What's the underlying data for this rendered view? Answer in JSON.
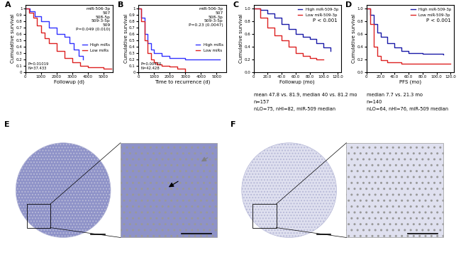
{
  "chart_data": [
    {
      "panel": "A",
      "type": "step",
      "xlabel": "Followup (d)",
      "ylabel": "Cumulative survival",
      "xlim": [
        0,
        5600
      ],
      "xticks": [
        0,
        1000,
        2000,
        3000,
        4000,
        5000
      ],
      "ylim": [
        0,
        1.05
      ],
      "yticks": [
        0,
        0.1,
        0.2,
        0.3,
        0.4,
        0.5,
        0.6,
        0.7,
        0.8,
        0.9,
        1
      ],
      "mirs": [
        "miR-506-3p",
        "507",
        "508-5p",
        "509-3-5p",
        "509"
      ],
      "p_value": "P=0.049 (0.010)",
      "stats": [
        "P=0.01019",
        "N=37.433"
      ],
      "legend": "center right",
      "series": [
        {
          "name": "High miRs",
          "color": "#3333ff",
          "x": [
            0,
            300,
            600,
            1000,
            1500,
            2000,
            2500,
            2800,
            3100,
            3400,
            3700
          ],
          "values": [
            1,
            0.95,
            0.88,
            0.8,
            0.7,
            0.6,
            0.55,
            0.45,
            0.35,
            0.25,
            0.2
          ]
        },
        {
          "name": "Low miRs",
          "color": "#dd2222",
          "x": [
            0,
            250,
            500,
            750,
            1000,
            1250,
            1500,
            2000,
            2500,
            3000,
            3500,
            4000,
            5000,
            5500
          ],
          "values": [
            1,
            0.93,
            0.85,
            0.73,
            0.62,
            0.53,
            0.45,
            0.33,
            0.22,
            0.15,
            0.1,
            0.07,
            0.05,
            0.05
          ]
        }
      ]
    },
    {
      "panel": "B",
      "type": "step",
      "xlabel": "Time to recurrence (d)",
      "ylabel": "Cumulative survival",
      "xlim": [
        0,
        5600
      ],
      "xticks": [
        0,
        1000,
        2000,
        3000,
        4000,
        5000
      ],
      "ylim": [
        0,
        1.05
      ],
      "yticks": [
        0,
        0.1,
        0.2,
        0.3,
        0.4,
        0.5,
        0.6,
        0.7,
        0.8,
        0.9,
        1
      ],
      "mirs": [
        "miR-506-3p",
        "507",
        "508-3p",
        "509-3-5p"
      ],
      "p_value": "P=0.23 (0.0047)",
      "stats": [
        "P=0.00470",
        "N=42.428"
      ],
      "legend": "center right",
      "series": [
        {
          "name": "High miRs",
          "color": "#3333ff",
          "x": [
            0,
            200,
            400,
            600,
            800,
            1000,
            1500,
            2000,
            3000,
            5200
          ],
          "values": [
            1,
            0.85,
            0.6,
            0.45,
            0.35,
            0.3,
            0.25,
            0.22,
            0.2,
            0.2
          ]
        },
        {
          "name": "Low miRs",
          "color": "#dd2222",
          "x": [
            0,
            200,
            400,
            600,
            800,
            1000,
            1200,
            1500,
            2000,
            2500,
            3000
          ],
          "values": [
            1,
            0.8,
            0.5,
            0.3,
            0.2,
            0.15,
            0.12,
            0.1,
            0.08,
            0.05,
            0
          ]
        }
      ]
    },
    {
      "panel": "C",
      "type": "step",
      "xlabel": "Followup (mo)",
      "ylabel": "Cumulative survival",
      "xlim": [
        0,
        125
      ],
      "xticks": [
        0,
        {
          "value": 20,
          "label": "20.0"
        },
        {
          "value": 40,
          "label": "40.0"
        },
        {
          "value": 60,
          "label": "60.0"
        },
        {
          "value": 80,
          "label": "80.0"
        },
        {
          "value": 100,
          "label": "100.0"
        },
        {
          "value": 120,
          "label": "120.0"
        }
      ],
      "ylim": [
        0,
        1.05
      ],
      "yticks": [
        {
          "value": 0,
          "label": "0.0"
        },
        0.2,
        0.4,
        0.6,
        0.8,
        {
          "value": 1,
          "label": "1.0"
        }
      ],
      "p_value": "P < 0.001",
      "notes": [
        "mean 47.8 vs. 81.9, median 40 vs. 81.2 mo",
        "n=157",
        "nLO=75, nHI=82, miR-509 median"
      ],
      "legend": "upper right",
      "series": [
        {
          "name": "High miR-509-3p",
          "color": "#1a1aa8",
          "x": [
            0,
            10,
            20,
            30,
            40,
            50,
            60,
            70,
            80,
            90,
            100,
            110
          ],
          "values": [
            1,
            0.97,
            0.92,
            0.85,
            0.75,
            0.67,
            0.6,
            0.55,
            0.52,
            0.45,
            0.38,
            0.33
          ]
        },
        {
          "name": "Low miR-509-3p",
          "color": "#dd2222",
          "x": [
            0,
            10,
            20,
            30,
            40,
            50,
            60,
            70,
            80,
            90,
            100
          ],
          "values": [
            1,
            0.85,
            0.7,
            0.58,
            0.5,
            0.4,
            0.3,
            0.25,
            0.22,
            0.2,
            0.2
          ]
        }
      ]
    },
    {
      "panel": "D",
      "type": "step",
      "xlabel": "PFS (mo)",
      "ylabel": "Cumulative survival",
      "xlim": [
        0,
        125
      ],
      "xticks": [
        0,
        {
          "value": 20,
          "label": "20.0"
        },
        {
          "value": 40,
          "label": "40.0"
        },
        {
          "value": 60,
          "label": "60.0"
        },
        {
          "value": 80,
          "label": "80.0"
        },
        {
          "value": 100,
          "label": "100.0"
        },
        {
          "value": 120,
          "label": "120.0"
        }
      ],
      "ylim": [
        0,
        1.05
      ],
      "yticks": [
        {
          "value": 0,
          "label": "0.0"
        },
        0.2,
        0.4,
        0.6,
        0.8,
        {
          "value": 1,
          "label": "1.0"
        }
      ],
      "p_value": "P < 0.001",
      "notes": [
        "median 7.7 vs. 21.3 mo",
        "n=140",
        "nLO=64, nHI=76, miR-509 median"
      ],
      "legend": "upper right",
      "series": [
        {
          "name": "High miR-509-3p",
          "color": "#1a1aa8",
          "x": [
            0,
            5,
            10,
            15,
            20,
            30,
            40,
            50,
            60,
            80,
            110
          ],
          "values": [
            1,
            0.9,
            0.75,
            0.62,
            0.55,
            0.45,
            0.38,
            0.33,
            0.3,
            0.28,
            0.27
          ]
        },
        {
          "name": "Low miR-509-3p",
          "color": "#dd2222",
          "x": [
            0,
            5,
            10,
            15,
            20,
            30,
            50,
            120
          ],
          "values": [
            1,
            0.75,
            0.4,
            0.25,
            0.18,
            0.15,
            0.13,
            0.13
          ]
        }
      ]
    },
    {
      "panel": "E",
      "type": "image",
      "color": "#8e92c8"
    },
    {
      "panel": "F",
      "type": "image",
      "color": "#dfe0ef"
    }
  ]
}
